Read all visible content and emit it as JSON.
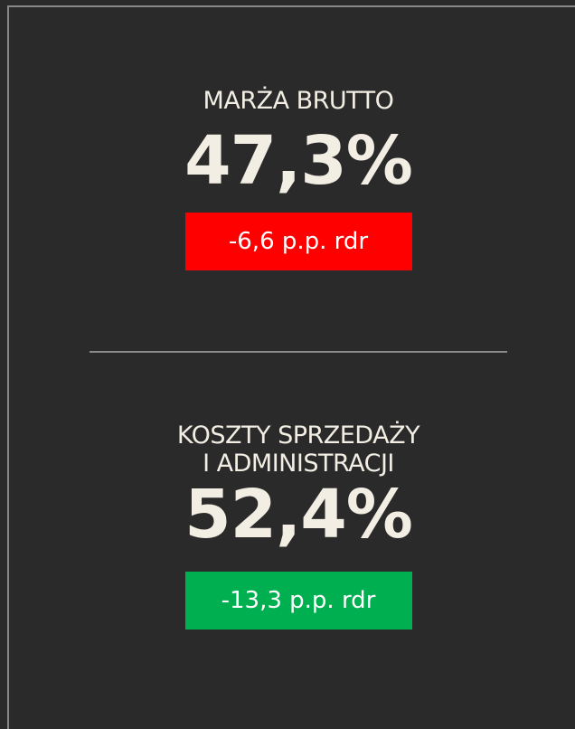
{
  "kpis": [
    {
      "title_lines": [
        "MARŻA BRUTTO"
      ],
      "value": "47,3%",
      "change": "-6,6 p.p. rdr",
      "change_color": "#ff0000"
    },
    {
      "title_lines": [
        "KOSZTY SPRZEDAŻY",
        "I ADMINISTRACJI"
      ],
      "value": "52,4%",
      "change": "-13,3 p.p. rdr",
      "change_color": "#00b050"
    }
  ]
}
